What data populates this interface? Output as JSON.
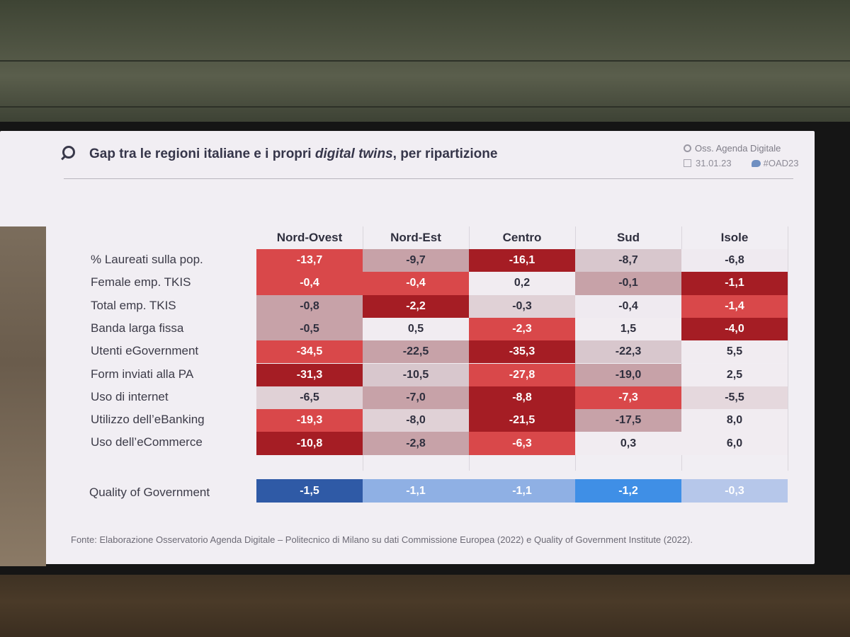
{
  "slide": {
    "title_part1": "Gap tra le regioni italiane e i propri ",
    "title_italic": "digital twins",
    "title_part2": ", per ripartizione",
    "brand": "Oss. Agenda Digitale",
    "date": "31.01.23",
    "hashtag": "#OAD23",
    "source": "Fonte: Elaborazione Osservatorio Agenda Digitale – Politecnico di Milano su dati Commissione Europea (2022) e Quality of Government Institute (2022)."
  },
  "chart_data": {
    "type": "heatmap",
    "columns": [
      "Nord-Ovest",
      "Nord-Est",
      "Centro",
      "Sud",
      "Isole"
    ],
    "rows": [
      {
        "label": "% Laureati sulla pop.",
        "values": [
          "-13,7",
          "-9,7",
          "-16,1",
          "-8,7",
          "-6,8"
        ],
        "colors": [
          "#d9484a",
          "#c7a2a8",
          "#a51d24",
          "#d8c7cd",
          "#efeaf0"
        ]
      },
      {
        "label": "Female emp. TKIS",
        "values": [
          "-0,4",
          "-0,4",
          "0,2",
          "-0,1",
          "-1,1"
        ],
        "colors": [
          "#d9484a",
          "#d9484a",
          "#f1ecf1",
          "#c7a2a8",
          "#a51d24"
        ]
      },
      {
        "label": "Total emp. TKIS",
        "values": [
          "-0,8",
          "-2,2",
          "-0,3",
          "-0,4",
          "-1,4"
        ],
        "colors": [
          "#c7a2a8",
          "#a51d24",
          "#e0d1d6",
          "#efeaf0",
          "#d9484a"
        ]
      },
      {
        "label": "Banda larga fissa",
        "values": [
          "-0,5",
          "0,5",
          "-2,3",
          "1,5",
          "-4,0"
        ],
        "colors": [
          "#c7a2a8",
          "#f1ecf1",
          "#d9484a",
          "#f1ecf1",
          "#a51d24"
        ]
      },
      {
        "label": "Utenti eGovernment",
        "values": [
          "-34,5",
          "-22,5",
          "-35,3",
          "-22,3",
          "5,5"
        ],
        "colors": [
          "#d9484a",
          "#c7a2a8",
          "#a51d24",
          "#d8c7cd",
          "#f1ecf1"
        ]
      },
      {
        "label": "Form inviati alla PA",
        "values": [
          "-31,3",
          "-10,5",
          "-27,8",
          "-19,0",
          "2,5"
        ],
        "colors": [
          "#a51d24",
          "#d8c7cd",
          "#d9484a",
          "#c7a2a8",
          "#f1ecf1"
        ]
      },
      {
        "label": "Uso di internet",
        "values": [
          "-6,5",
          "-7,0",
          "-8,8",
          "-7,3",
          "-5,5"
        ],
        "colors": [
          "#e0d1d6",
          "#c7a2a8",
          "#a51d24",
          "#d9484a",
          "#e5d8dd"
        ]
      },
      {
        "label": "Utilizzo dell’eBanking",
        "values": [
          "-19,3",
          "-8,0",
          "-21,5",
          "-17,5",
          "8,0"
        ],
        "colors": [
          "#d9484a",
          "#e0d1d6",
          "#a51d24",
          "#c7a2a8",
          "#f1ecf1"
        ]
      },
      {
        "label": "Uso dell’eCommerce",
        "values": [
          "-10,8",
          "-2,8",
          "-6,3",
          "0,3",
          "6,0"
        ],
        "colors": [
          "#a51d24",
          "#c7a2a8",
          "#d9484a",
          "#f1ecf1",
          "#f1ecf1"
        ]
      }
    ],
    "qog": {
      "label": "Quality of Government",
      "values": [
        "-1,5",
        "-1,1",
        "-1,1",
        "-1,2",
        "-0,3"
      ],
      "colors": [
        "#2f5aa6",
        "#8fb0e4",
        "#8fb0e4",
        "#3f8fe6",
        "#b6c7ea"
      ]
    }
  }
}
